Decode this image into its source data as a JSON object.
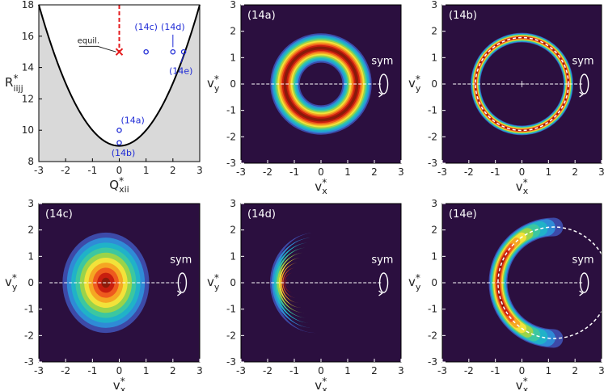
{
  "colors": {
    "background": "#2b0f3f",
    "shaded_region": "#d9d9d9",
    "curve": "#000000",
    "marker": "#1f2bd6",
    "equil_marker": "#e41a1c",
    "tick_text": "#222222",
    "panel_label": "#ffffff",
    "contour_palette": [
      "#2b0f3f",
      "#3d4aa8",
      "#2f8bd6",
      "#20b2c8",
      "#3cc7a0",
      "#9ad34a",
      "#f2e23a",
      "#f5a623",
      "#ee5a1e",
      "#c81e0f",
      "#8b1a0a"
    ]
  },
  "chart_data": [
    {
      "id": "state-space",
      "type": "scatter",
      "xlabel": "Q",
      "xlabel_star": "*",
      "xlabel_sub": "xii",
      "ylabel": "R",
      "ylabel_star": "*",
      "ylabel_sub": "iijj",
      "xlim": [
        -3,
        3
      ],
      "ylim": [
        8,
        18
      ],
      "xticks": [
        "-3",
        "-2",
        "-1",
        "0",
        "1",
        "2",
        "3"
      ],
      "yticks": [
        "8",
        "10",
        "12",
        "14",
        "16",
        "18"
      ],
      "boundary_curve": "R = 9 + Q^2 (shaded region outside)",
      "equilibrium": {
        "x": 0,
        "y": 15,
        "label": "equil."
      },
      "points": [
        {
          "x": 0,
          "y": 10,
          "label": "(14a)"
        },
        {
          "x": 0,
          "y": 9.2,
          "label": "(14b)"
        },
        {
          "x": 1,
          "y": 15,
          "label": "(14c)"
        },
        {
          "x": 2,
          "y": 15,
          "label": "(14d)"
        },
        {
          "x": 2.4,
          "y": 15,
          "label": "(14e)"
        }
      ]
    },
    {
      "id": "14a",
      "type": "heatmap",
      "label": "(14a)",
      "sym_label": "sym",
      "shape": "ring",
      "center": [
        0,
        0
      ],
      "radius": 1.35,
      "width": 0.55,
      "xlabel": "v",
      "xlabel_star": "*",
      "xlabel_sub": "x",
      "ylabel": "v",
      "ylabel_star": "*",
      "ylabel_sub": "y",
      "xlim": [
        -3,
        3
      ],
      "ylim": [
        -3,
        3
      ],
      "xticks": [
        "-3",
        "-2",
        "-1",
        "0",
        "1",
        "2",
        "3"
      ],
      "yticks": [
        "-3",
        "-2",
        "-1",
        "0",
        "1",
        "2",
        "3"
      ]
    },
    {
      "id": "14b",
      "type": "heatmap",
      "label": "(14b)",
      "sym_label": "sym",
      "shape": "thin-ring",
      "center": [
        0,
        0
      ],
      "radius": 1.75,
      "width": 0.18,
      "xlabel": "v",
      "xlabel_star": "*",
      "xlabel_sub": "x",
      "ylabel": "v",
      "ylabel_star": "*",
      "ylabel_sub": "y",
      "xlim": [
        -3,
        3
      ],
      "ylim": [
        -3,
        3
      ],
      "xticks": [
        "-3",
        "-2",
        "-1",
        "0",
        "1",
        "2",
        "3"
      ],
      "yticks": [
        "-3",
        "-2",
        "-1",
        "0",
        "1",
        "2",
        "3"
      ]
    },
    {
      "id": "14c",
      "type": "heatmap",
      "label": "(14c)",
      "sym_label": "sym",
      "shape": "blob",
      "center": [
        -0.5,
        0
      ],
      "rx": 1.7,
      "ry": 2.0,
      "xlabel": "v",
      "xlabel_star": "*",
      "xlabel_sub": "x",
      "ylabel": "v",
      "ylabel_star": "*",
      "ylabel_sub": "y",
      "xlim": [
        -3,
        3
      ],
      "ylim": [
        -3,
        3
      ],
      "xticks": [
        "-3",
        "-2",
        "-1",
        "0",
        "1",
        "2",
        "3"
      ],
      "yticks": [
        "-3",
        "-2",
        "-1",
        "0",
        "1",
        "2",
        "3"
      ]
    },
    {
      "id": "14d",
      "type": "heatmap",
      "label": "(14d)",
      "sym_label": "sym",
      "shape": "crescent",
      "center": [
        -0.85,
        0
      ],
      "xlabel": "v",
      "xlabel_star": "*",
      "xlabel_sub": "x",
      "ylabel": "v",
      "ylabel_star": "*",
      "ylabel_sub": "y",
      "xlim": [
        -3,
        3
      ],
      "ylim": [
        -3,
        3
      ],
      "xticks": [
        "-3",
        "-2",
        "-1",
        "0",
        "1",
        "2",
        "3"
      ],
      "yticks": [
        "-3",
        "-2",
        "-1",
        "0",
        "1",
        "2",
        "3"
      ]
    },
    {
      "id": "14e",
      "type": "heatmap",
      "label": "(14e)",
      "sym_label": "sym",
      "shape": "thin-crescent",
      "center": [
        -0.9,
        0
      ],
      "circle_center": [
        1.2,
        0
      ],
      "circle_radius": 2.1,
      "xlabel": "v",
      "xlabel_star": "*",
      "xlabel_sub": "x",
      "ylabel": "v",
      "ylabel_star": "*",
      "ylabel_sub": "y",
      "xlim": [
        -3,
        3
      ],
      "ylim": [
        -3,
        3
      ],
      "xticks": [
        "-3",
        "-2",
        "-1",
        "0",
        "1",
        "2",
        "3"
      ],
      "yticks": [
        "-3",
        "-2",
        "-1",
        "0",
        "1",
        "2",
        "3"
      ]
    }
  ]
}
